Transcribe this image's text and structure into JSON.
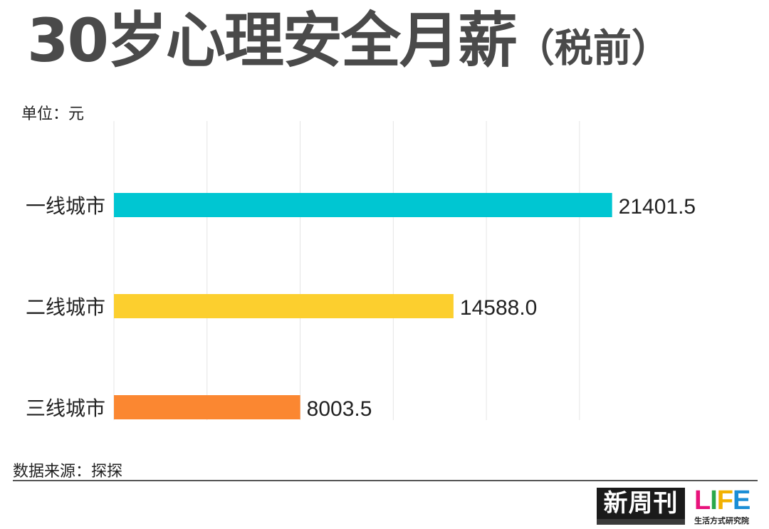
{
  "header": {
    "title": "30岁心理安全月薪",
    "title_suffix": "（税前）"
  },
  "unit_label": "单位：元",
  "source_label": "数据来源：探探",
  "logos": {
    "xinzhoukan": "新周刊",
    "life_word": [
      "L",
      "I",
      "F",
      "E"
    ],
    "life_tagline": "生活方式研究院"
  },
  "chart_data": {
    "type": "bar",
    "orientation": "horizontal",
    "title": "30岁心理安全月薪（税前）",
    "unit": "单位：元",
    "categories": [
      "一线城市",
      "二线城市",
      "三线城市"
    ],
    "values": [
      21401.5,
      14588.0,
      8003.5
    ],
    "value_labels": [
      "21401.5",
      "14588.0",
      "8003.5"
    ],
    "colors": [
      "#00c6d2",
      "#fccf2e",
      "#fb8731"
    ],
    "xlim": [
      0,
      26000
    ],
    "grid": true,
    "legend": "none"
  }
}
